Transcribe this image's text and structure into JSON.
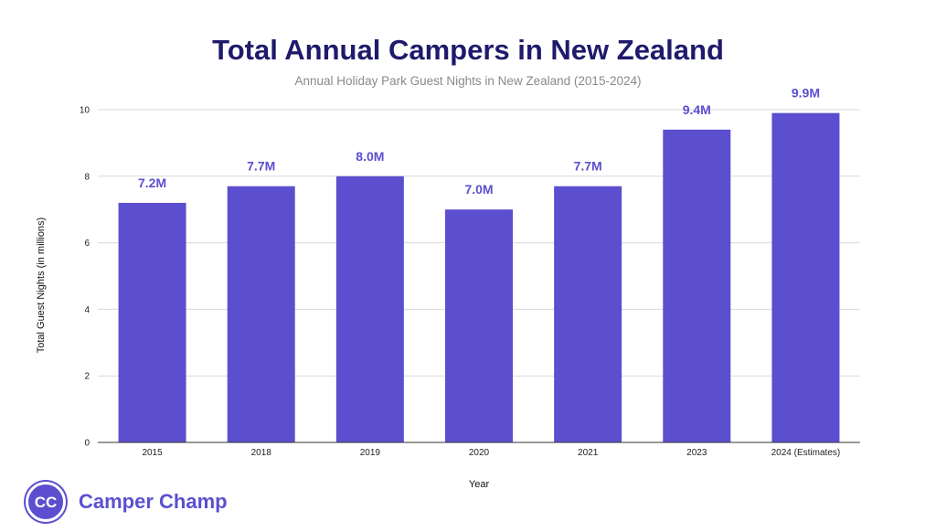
{
  "colors": {
    "bar": "#5b4fcf",
    "title": "#1f1a6b",
    "subtitle": "#8a8a8a",
    "grid": "#d9d9d9"
  },
  "brand": {
    "name": "Camper Champ",
    "icon": "camper-champ-logo-icon",
    "logo_letters": "CC"
  },
  "chart_data": {
    "type": "bar",
    "title": "Total Annual Campers in New Zealand",
    "subtitle": "Annual Holiday Park Guest Nights in New Zealand (2015-2024)",
    "xlabel": "Year",
    "ylabel": "Total Guest Nights (in millions)",
    "categories": [
      "2015",
      "2018",
      "2019",
      "2020",
      "2021",
      "2023",
      "2024 (Estimates)"
    ],
    "values": [
      7.2,
      7.7,
      8.0,
      7.0,
      7.7,
      9.4,
      9.9
    ],
    "data_labels": [
      "7.2M",
      "7.7M",
      "8.0M",
      "7.0M",
      "7.7M",
      "9.4M",
      "9.9M"
    ],
    "ylim": [
      0,
      10
    ],
    "yticks": [
      0,
      2,
      4,
      6,
      8,
      10
    ],
    "grid": true,
    "legend": "none"
  }
}
